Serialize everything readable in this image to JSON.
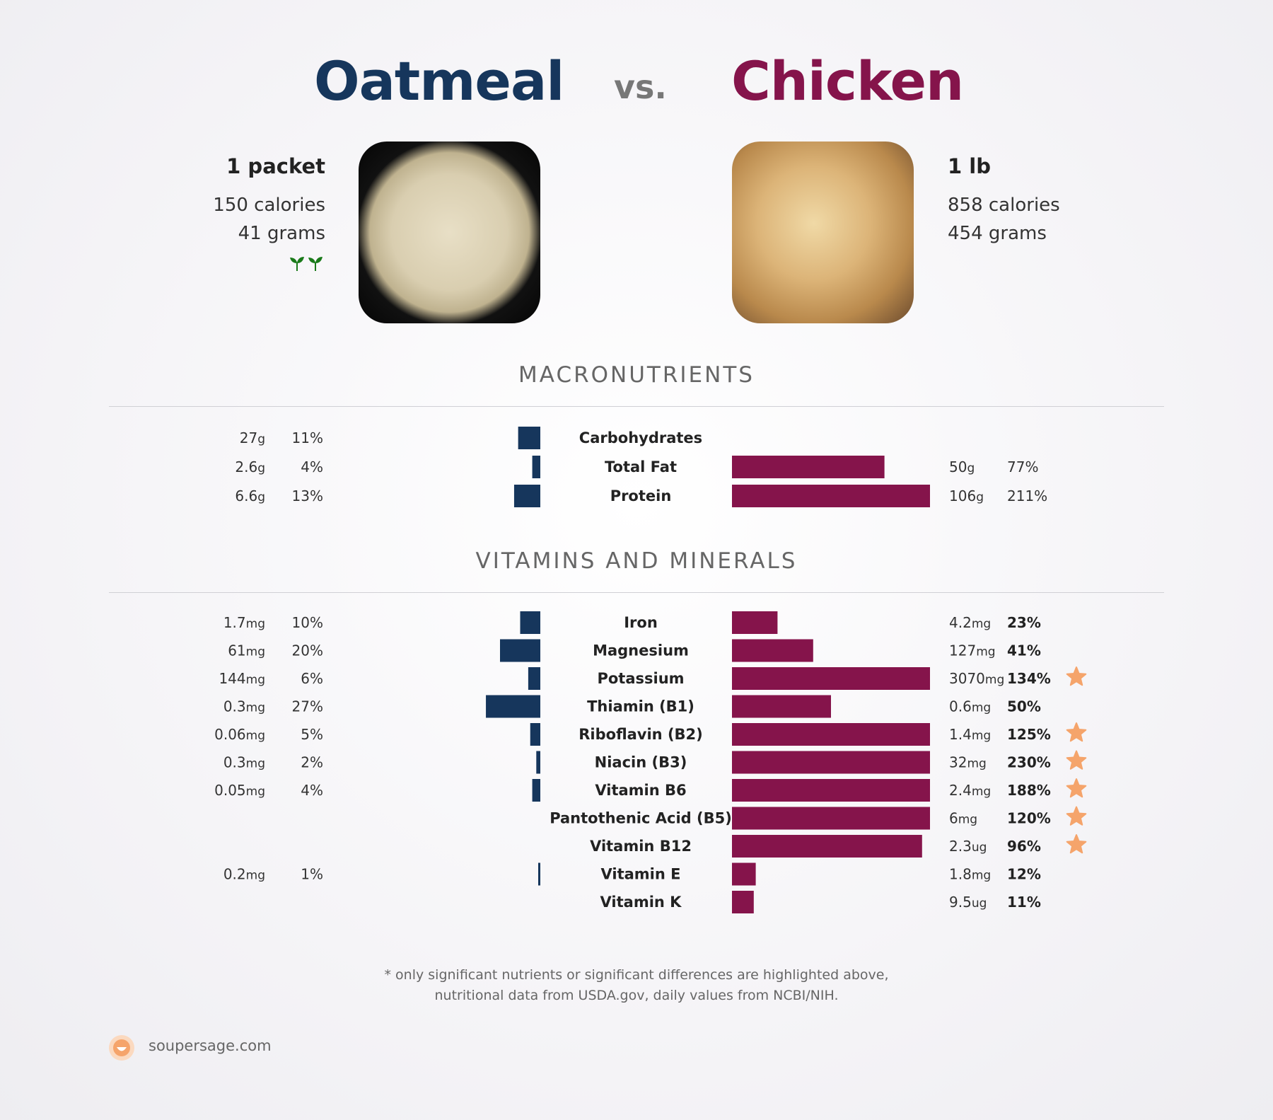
{
  "title": {
    "left": "Oatmeal",
    "vs": "vs.",
    "right": "Chicken"
  },
  "left_food": {
    "serving": "1 packet",
    "calories": "150 calories",
    "grams": "41 grams",
    "vegan_icon": "sprout-icon"
  },
  "right_food": {
    "serving": "1 lb",
    "calories": "858 calories",
    "grams": "454 grams"
  },
  "colors": {
    "left": "#16365c",
    "right": "#85144b",
    "star": "#f5a46b"
  },
  "sections": {
    "macro_title": "MACRONUTRIENTS",
    "vit_title": "VITAMINS AND MINERALS"
  },
  "footnote": {
    "line1": "* only significant nutrients or significant differences are highlighted above,",
    "line2": "nutritional data from USDA.gov, daily values from NCBI/NIH."
  },
  "brand": "soupersage.com",
  "chart_data": {
    "type": "bar",
    "series": [
      {
        "name": "Oatmeal"
      },
      {
        "name": "Chicken"
      }
    ],
    "macros": [
      {
        "name": "Carbohydrates",
        "left_amount": "27",
        "left_unit": "g",
        "left_pct": 11,
        "left_pct_text": "11%",
        "right_amount": "",
        "right_unit": "",
        "right_pct": null,
        "right_pct_text": ""
      },
      {
        "name": "Total Fat",
        "left_amount": "2.6",
        "left_unit": "g",
        "left_pct": 4,
        "left_pct_text": "4%",
        "right_amount": "50",
        "right_unit": "g",
        "right_pct": 77,
        "right_pct_text": "77%"
      },
      {
        "name": "Protein",
        "left_amount": "6.6",
        "left_unit": "g",
        "left_pct": 13,
        "left_pct_text": "13%",
        "right_amount": "106",
        "right_unit": "g",
        "right_pct": 211,
        "right_pct_text": "211%"
      }
    ],
    "vitamins": [
      {
        "name": "Iron",
        "left_amount": "1.7",
        "left_unit": "mg",
        "left_pct": 10,
        "left_pct_text": "10%",
        "right_amount": "4.2",
        "right_unit": "mg",
        "right_pct": 23,
        "right_pct_text": "23%",
        "star": false
      },
      {
        "name": "Magnesium",
        "left_amount": "61",
        "left_unit": "mg",
        "left_pct": 20,
        "left_pct_text": "20%",
        "right_amount": "127",
        "right_unit": "mg",
        "right_pct": 41,
        "right_pct_text": "41%",
        "star": false
      },
      {
        "name": "Potassium",
        "left_amount": "144",
        "left_unit": "mg",
        "left_pct": 6,
        "left_pct_text": "6%",
        "right_amount": "3070",
        "right_unit": "mg",
        "right_pct": 134,
        "right_pct_text": "134%",
        "star": true
      },
      {
        "name": "Thiamin (B1)",
        "left_amount": "0.3",
        "left_unit": "mg",
        "left_pct": 27,
        "left_pct_text": "27%",
        "right_amount": "0.6",
        "right_unit": "mg",
        "right_pct": 50,
        "right_pct_text": "50%",
        "star": false
      },
      {
        "name": "Riboflavin (B2)",
        "left_amount": "0.06",
        "left_unit": "mg",
        "left_pct": 5,
        "left_pct_text": "5%",
        "right_amount": "1.4",
        "right_unit": "mg",
        "right_pct": 125,
        "right_pct_text": "125%",
        "star": true
      },
      {
        "name": "Niacin (B3)",
        "left_amount": "0.3",
        "left_unit": "mg",
        "left_pct": 2,
        "left_pct_text": "2%",
        "right_amount": "32",
        "right_unit": "mg",
        "right_pct": 230,
        "right_pct_text": "230%",
        "star": true
      },
      {
        "name": "Vitamin B6",
        "left_amount": "0.05",
        "left_unit": "mg",
        "left_pct": 4,
        "left_pct_text": "4%",
        "right_amount": "2.4",
        "right_unit": "mg",
        "right_pct": 188,
        "right_pct_text": "188%",
        "star": true
      },
      {
        "name": "Pantothenic Acid (B5)",
        "left_amount": "",
        "left_unit": "",
        "left_pct": null,
        "left_pct_text": "",
        "right_amount": "6",
        "right_unit": "mg",
        "right_pct": 120,
        "right_pct_text": "120%",
        "star": true
      },
      {
        "name": "Vitamin B12",
        "left_amount": "",
        "left_unit": "",
        "left_pct": null,
        "left_pct_text": "",
        "right_amount": "2.3",
        "right_unit": "ug",
        "right_pct": 96,
        "right_pct_text": "96%",
        "star": true
      },
      {
        "name": "Vitamin E",
        "left_amount": "0.2",
        "left_unit": "mg",
        "left_pct": 1,
        "left_pct_text": "1%",
        "right_amount": "1.8",
        "right_unit": "mg",
        "right_pct": 12,
        "right_pct_text": "12%",
        "star": false
      },
      {
        "name": "Vitamin K",
        "left_amount": "",
        "left_unit": "",
        "left_pct": null,
        "left_pct_text": "",
        "right_amount": "9.5",
        "right_unit": "ug",
        "right_pct": 11,
        "right_pct_text": "11%",
        "star": false
      }
    ]
  }
}
